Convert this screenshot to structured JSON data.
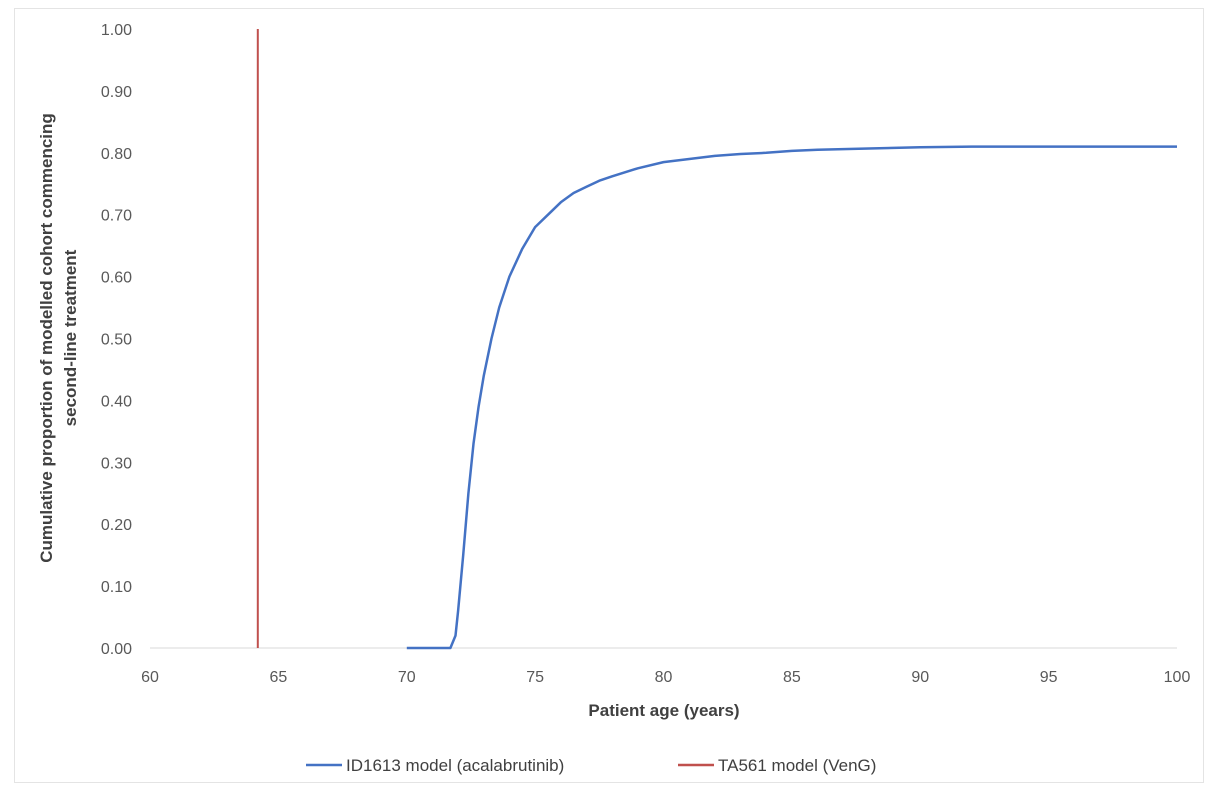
{
  "chart_data": {
    "type": "line",
    "xlabel": "Patient age (years)",
    "ylabel_lines": [
      "Cumulative proportion of modelled cohort commencing",
      "second-line treatment"
    ],
    "xlim": [
      60,
      100
    ],
    "ylim": [
      0,
      1
    ],
    "x_ticks": [
      "60",
      "65",
      "70",
      "75",
      "80",
      "85",
      "90",
      "95",
      "100"
    ],
    "y_ticks": [
      "0.00",
      "0.10",
      "0.20",
      "0.30",
      "0.40",
      "0.50",
      "0.60",
      "0.70",
      "0.80",
      "0.90",
      "1.00"
    ],
    "grid": false,
    "legend_position": "bottom",
    "series": [
      {
        "name": "ID1613 model (acalabrutinib)",
        "color": "#4472C4",
        "x": [
          70,
          71.7,
          71.9,
          72.0,
          72.2,
          72.4,
          72.6,
          72.8,
          73.0,
          73.3,
          73.6,
          74.0,
          74.5,
          75.0,
          75.5,
          76.0,
          76.5,
          77.0,
          77.5,
          78.0,
          79.0,
          80.0,
          81.0,
          82.0,
          83.0,
          84.0,
          85.0,
          86.0,
          88.0,
          90.0,
          92.0,
          95.0,
          100.0
        ],
        "y": [
          0.0,
          0.0,
          0.02,
          0.06,
          0.15,
          0.25,
          0.33,
          0.39,
          0.44,
          0.5,
          0.55,
          0.6,
          0.645,
          0.68,
          0.7,
          0.72,
          0.735,
          0.745,
          0.755,
          0.762,
          0.775,
          0.785,
          0.79,
          0.795,
          0.798,
          0.8,
          0.803,
          0.805,
          0.807,
          0.809,
          0.81,
          0.81,
          0.81
        ]
      },
      {
        "name": "TA561 model (VenG)",
        "color": "#C0504D",
        "x": [
          64.2,
          64.2
        ],
        "y": [
          0.0,
          1.0
        ]
      }
    ]
  }
}
